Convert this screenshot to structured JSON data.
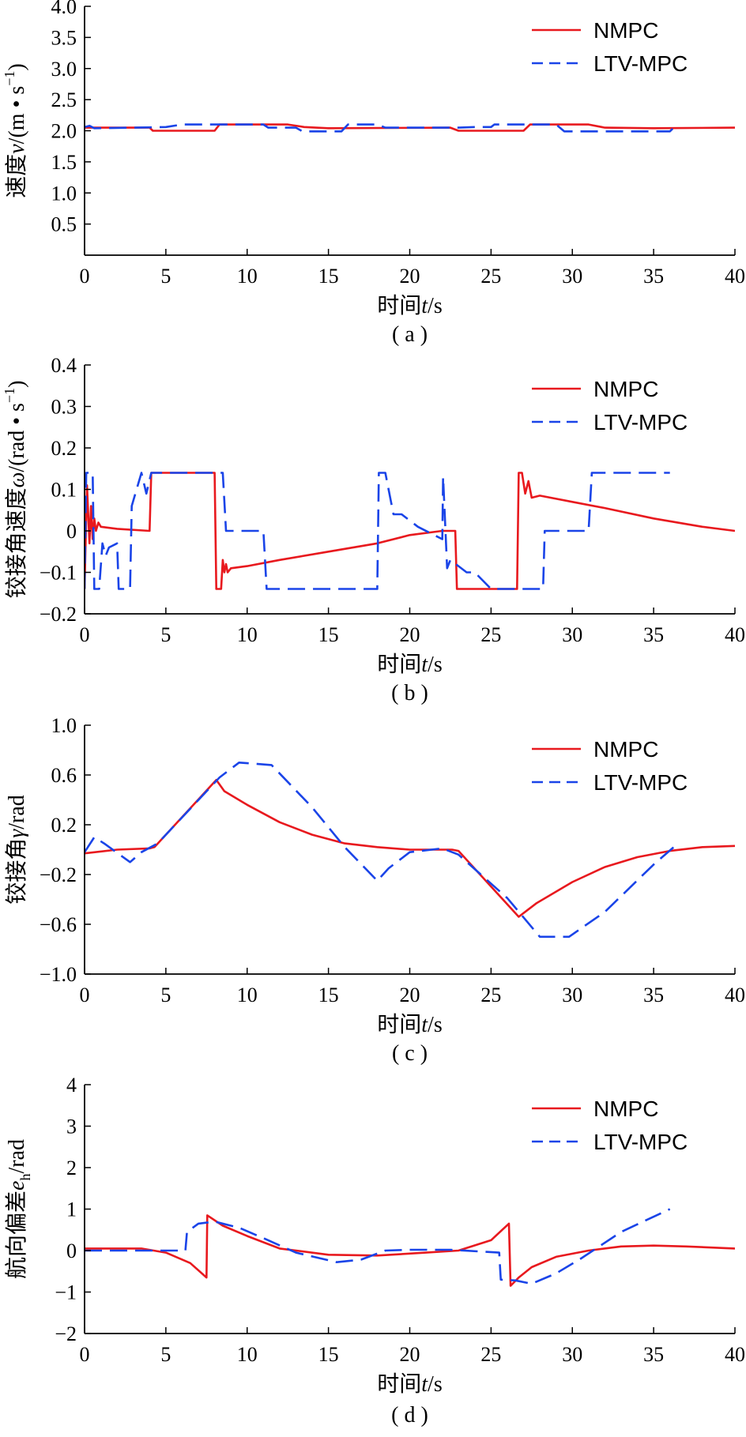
{
  "colors": {
    "nmpc": "#e8191e",
    "ltv": "#1a44e8",
    "axis": "#000000"
  },
  "chart_data": [
    {
      "type": "line",
      "caption": "( a )",
      "ylabel_html": "速度<tspan font-style='italic'>v</tspan>/(m • s<tspan dy='-12' font-size='18'>−1</tspan><tspan dy='12'>)</tspan>",
      "ylabel": "速度v/(m • s−1)",
      "xlabel": "时间t/s",
      "xlim": [
        0,
        40
      ],
      "ylim": [
        0,
        4.0
      ],
      "xticks": [
        0,
        5,
        10,
        15,
        20,
        25,
        30,
        35,
        40
      ],
      "xtick_labels": [
        "0",
        "5",
        "10",
        "15",
        "20",
        "25",
        "30",
        "35",
        "40"
      ],
      "yticks": [
        0.5,
        1.0,
        1.5,
        2.0,
        2.5,
        3.0,
        3.5,
        4.0
      ],
      "ytick_labels": [
        "0.5",
        "1.0",
        "1.5",
        "2.0",
        "2.5",
        "3.0",
        "3.5",
        "4.0"
      ],
      "legend": [
        "NMPC",
        "LTV-MPC"
      ],
      "series": [
        {
          "name": "NMPC",
          "style": "solid",
          "x": [
            0,
            4,
            4.2,
            8,
            8.3,
            12.5,
            13.5,
            15,
            22.5,
            23,
            27,
            27.4,
            31,
            32,
            35,
            40
          ],
          "y": [
            2.05,
            2.05,
            2.0,
            2.0,
            2.1,
            2.1,
            2.06,
            2.04,
            2.05,
            2.0,
            2.0,
            2.1,
            2.1,
            2.05,
            2.04,
            2.05
          ]
        },
        {
          "name": "LTV-MPC",
          "style": "dashed",
          "x": [
            0,
            0.3,
            0.6,
            3,
            5,
            6,
            9,
            11,
            11.3,
            13,
            13.4,
            15.8,
            16.2,
            18,
            18.5,
            22,
            23,
            24,
            25,
            25.2,
            28,
            29,
            29.5,
            32,
            36,
            36.2,
            36.3
          ],
          "y": [
            2.06,
            2.08,
            2.04,
            2.05,
            2.06,
            2.1,
            2.1,
            2.1,
            2.05,
            2.05,
            1.99,
            1.99,
            2.1,
            2.1,
            2.05,
            2.05,
            2.05,
            2.06,
            2.06,
            2.1,
            2.1,
            2.1,
            1.99,
            1.99,
            1.99,
            2.04,
            2.1
          ]
        }
      ]
    },
    {
      "type": "line",
      "caption": "( b )",
      "ylabel_html": "铰接角速度<tspan font-style='italic'>ω</tspan>/(rad • s<tspan dy='-12' font-size='18'>−1</tspan><tspan dy='12'>)</tspan>",
      "ylabel": "铰接角速度ω/(rad • s−1)",
      "xlabel": "时间t/s",
      "xlim": [
        0,
        40
      ],
      "ylim": [
        -0.2,
        0.4
      ],
      "xticks": [
        0,
        5,
        10,
        15,
        20,
        25,
        30,
        35,
        40
      ],
      "xtick_labels": [
        "0",
        "5",
        "10",
        "15",
        "20",
        "25",
        "30",
        "35",
        "40"
      ],
      "yticks": [
        -0.2,
        -0.1,
        0,
        0.1,
        0.2,
        0.3,
        0.4
      ],
      "ytick_labels": [
        "−0.2",
        "−0.1",
        "0",
        "0.1",
        "0.2",
        "0.3",
        "0.4"
      ],
      "legend": [
        "NMPC",
        "LTV-MPC"
      ],
      "series": [
        {
          "name": "NMPC",
          "style": "solid",
          "x": [
            0,
            0.15,
            0.3,
            0.4,
            0.5,
            0.6,
            0.7,
            0.85,
            1,
            2,
            4,
            4.1,
            8,
            8.1,
            8.4,
            8.5,
            8.6,
            8.7,
            8.8,
            9,
            10,
            12,
            15,
            18,
            20,
            22,
            22.8,
            22.9,
            26.6,
            26.7,
            26.9,
            27.1,
            27.3,
            27.5,
            28,
            30,
            32,
            35,
            38,
            40
          ],
          "y": [
            -0.14,
            0.11,
            -0.03,
            0.06,
            -0.02,
            0.03,
            0.0,
            0.02,
            0.01,
            0.005,
            0.0,
            0.14,
            0.14,
            -0.14,
            -0.14,
            -0.07,
            -0.1,
            -0.08,
            -0.1,
            -0.09,
            -0.085,
            -0.07,
            -0.05,
            -0.03,
            -0.01,
            0.0,
            0.0,
            -0.14,
            -0.14,
            0.14,
            0.14,
            0.09,
            0.12,
            0.08,
            0.085,
            0.07,
            0.055,
            0.03,
            0.01,
            0.0
          ]
        },
        {
          "name": "LTV-MPC",
          "style": "dashed",
          "x": [
            0,
            0.1,
            0.5,
            0.6,
            0.9,
            1.1,
            1.3,
            1.5,
            2,
            2.1,
            2.8,
            2.9,
            3.5,
            3.8,
            4.1,
            5,
            8,
            8.5,
            8.7,
            11,
            11.2,
            18,
            18.1,
            18.5,
            19,
            19.5,
            20.5,
            21.5,
            22,
            22.05,
            22.3,
            22.5,
            23.5,
            24,
            25,
            25.5,
            27.5,
            28.2,
            28.3,
            31,
            31.2,
            36
          ],
          "y": [
            -0.14,
            0.14,
            0.14,
            -0.14,
            -0.14,
            -0.03,
            -0.06,
            -0.04,
            -0.03,
            -0.14,
            -0.14,
            0.06,
            0.14,
            0.09,
            0.14,
            0.14,
            0.14,
            0.14,
            0.0,
            0.0,
            -0.14,
            -0.14,
            0.14,
            0.14,
            0.04,
            0.04,
            0.01,
            -0.01,
            -0.02,
            0.13,
            -0.09,
            -0.07,
            -0.1,
            -0.1,
            -0.14,
            -0.14,
            -0.14,
            -0.14,
            0.0,
            0.0,
            0.14,
            0.14
          ]
        }
      ]
    },
    {
      "type": "line",
      "caption": "( c )",
      "ylabel_html": "铰接角<tspan font-style='italic'>γ</tspan>/rad",
      "ylabel": "铰接角γ/rad",
      "xlabel": "时间t/s",
      "xlim": [
        0,
        40
      ],
      "ylim": [
        -1.0,
        1.0
      ],
      "xticks": [
        0,
        5,
        10,
        15,
        20,
        25,
        30,
        35,
        40
      ],
      "xtick_labels": [
        "0",
        "5",
        "10",
        "15",
        "20",
        "25",
        "30",
        "35",
        "40"
      ],
      "yticks": [
        -1.0,
        -0.6,
        -0.2,
        0.2,
        0.6,
        1.0
      ],
      "ytick_labels": [
        "−1.0",
        "−0.6",
        "−0.2",
        "0.2",
        "0.6",
        "1.0"
      ],
      "legend": [
        "NMPC",
        "LTV-MPC"
      ],
      "series": [
        {
          "name": "NMPC",
          "style": "solid",
          "x": [
            0,
            2,
            4,
            4.3,
            8.1,
            8.6,
            10,
            12,
            14,
            16,
            18,
            20,
            22.6,
            23,
            26.7,
            27.2,
            27.8,
            30,
            32,
            34,
            36,
            38,
            40
          ],
          "y": [
            -0.03,
            0.0,
            0.01,
            0.02,
            0.56,
            0.47,
            0.36,
            0.22,
            0.12,
            0.05,
            0.02,
            0.0,
            0.0,
            -0.01,
            -0.54,
            -0.49,
            -0.43,
            -0.26,
            -0.14,
            -0.06,
            -0.01,
            0.02,
            0.03
          ]
        },
        {
          "name": "LTV-MPC",
          "style": "dashed",
          "x": [
            0,
            0.6,
            1.2,
            2.8,
            3.5,
            4.5,
            8.3,
            9.5,
            11.5,
            14,
            16,
            18,
            18.7,
            20,
            22,
            23,
            26,
            28,
            29.8,
            32,
            35,
            36.5
          ],
          "y": [
            -0.02,
            0.1,
            0.05,
            -0.1,
            -0.02,
            0.05,
            0.58,
            0.7,
            0.68,
            0.34,
            0.02,
            -0.25,
            -0.15,
            -0.02,
            0.01,
            -0.04,
            -0.39,
            -0.7,
            -0.7,
            -0.5,
            -0.12,
            0.05
          ]
        }
      ]
    },
    {
      "type": "line",
      "caption": "( d )",
      "ylabel_html": "航向偏差<tspan font-style='italic'>e</tspan><tspan dy='8' font-size='18'>h</tspan><tspan dy='-8'>/rad</tspan>",
      "ylabel": "航向偏差eh/rad",
      "xlabel": "时间t/s",
      "xlim": [
        0,
        40
      ],
      "ylim": [
        -2,
        4
      ],
      "xticks": [
        0,
        5,
        10,
        15,
        20,
        25,
        30,
        35,
        40
      ],
      "xtick_labels": [
        "0",
        "5",
        "10",
        "15",
        "20",
        "25",
        "30",
        "35",
        "40"
      ],
      "yticks": [
        -2,
        -1,
        0,
        1,
        2,
        3,
        4
      ],
      "ytick_labels": [
        "−2",
        "−1",
        "0",
        "1",
        "2",
        "3",
        "4"
      ],
      "legend": [
        "NMPC",
        "LTV-MPC"
      ],
      "series": [
        {
          "name": "NMPC",
          "style": "solid",
          "x": [
            0,
            3.5,
            5,
            6.5,
            7.5,
            7.55,
            8.5,
            10,
            12,
            15,
            18,
            21,
            23,
            25,
            26.1,
            26.2,
            26.7,
            27.5,
            29,
            31,
            33,
            35,
            37,
            40
          ],
          "y": [
            0.05,
            0.05,
            -0.05,
            -0.3,
            -0.65,
            0.85,
            0.6,
            0.35,
            0.05,
            -0.1,
            -0.12,
            -0.05,
            0.0,
            0.25,
            0.65,
            -0.85,
            -0.65,
            -0.4,
            -0.15,
            0.0,
            0.1,
            0.12,
            0.1,
            0.05
          ]
        },
        {
          "name": "LTV-MPC",
          "style": "dashed",
          "x": [
            0,
            5,
            6.2,
            6.3,
            7,
            8,
            9.5,
            11,
            13,
            15.5,
            17,
            18.5,
            20,
            22.5,
            25.5,
            25.6,
            26.5,
            27.5,
            29,
            30.5,
            33,
            36
          ],
          "y": [
            0.0,
            0.0,
            0.0,
            0.45,
            0.65,
            0.7,
            0.55,
            0.3,
            -0.05,
            -0.28,
            -0.22,
            0.0,
            0.02,
            0.02,
            -0.05,
            -0.7,
            -0.72,
            -0.8,
            -0.55,
            -0.2,
            0.45,
            1.0
          ]
        }
      ]
    }
  ]
}
